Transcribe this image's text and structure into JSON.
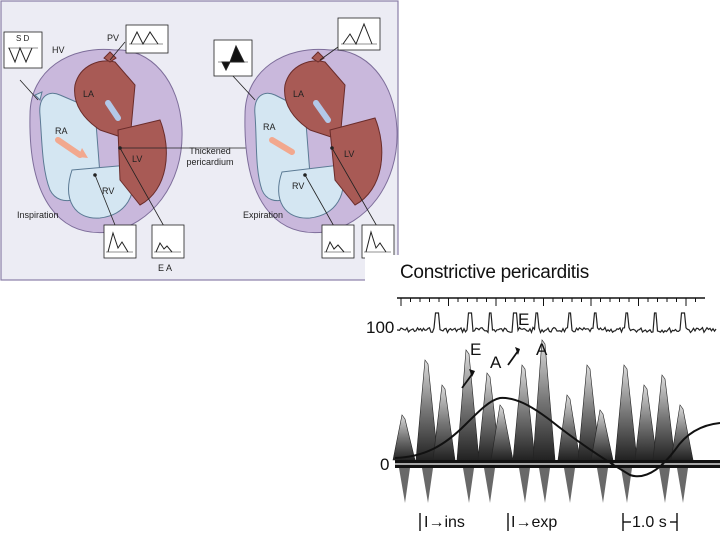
{
  "diagram": {
    "left_heart": {
      "hv": "HV",
      "sd": "S D",
      "pv": "PV",
      "la": "LA",
      "ra": "RA",
      "lv": "LV",
      "rv": "RV",
      "phase": "Inspiration",
      "ea": "E A"
    },
    "right_heart": {
      "la": "LA",
      "ra": "RA",
      "lv": "LV",
      "rv": "RV",
      "phase": "Expiration"
    },
    "pericardium_label_1": "Thickened",
    "pericardium_label_2": "pericardium"
  },
  "trace": {
    "title": "Constrictive pericarditis",
    "tick_top": "100",
    "tick_zero": "0",
    "e1": "E",
    "a1": "A",
    "e2": "E",
    "a2": "A",
    "ins": "I→ins",
    "exp": "I→exp",
    "scale": "1.0 s"
  },
  "colors": {
    "panel_bg": "#ececf4",
    "panel_border": "#8a7fa8",
    "pericardium": "#c9b8dc",
    "right_heart": "#d4e6f2",
    "left_heart": "#a85a55",
    "myocardium_dark": "#8c3f3c"
  }
}
